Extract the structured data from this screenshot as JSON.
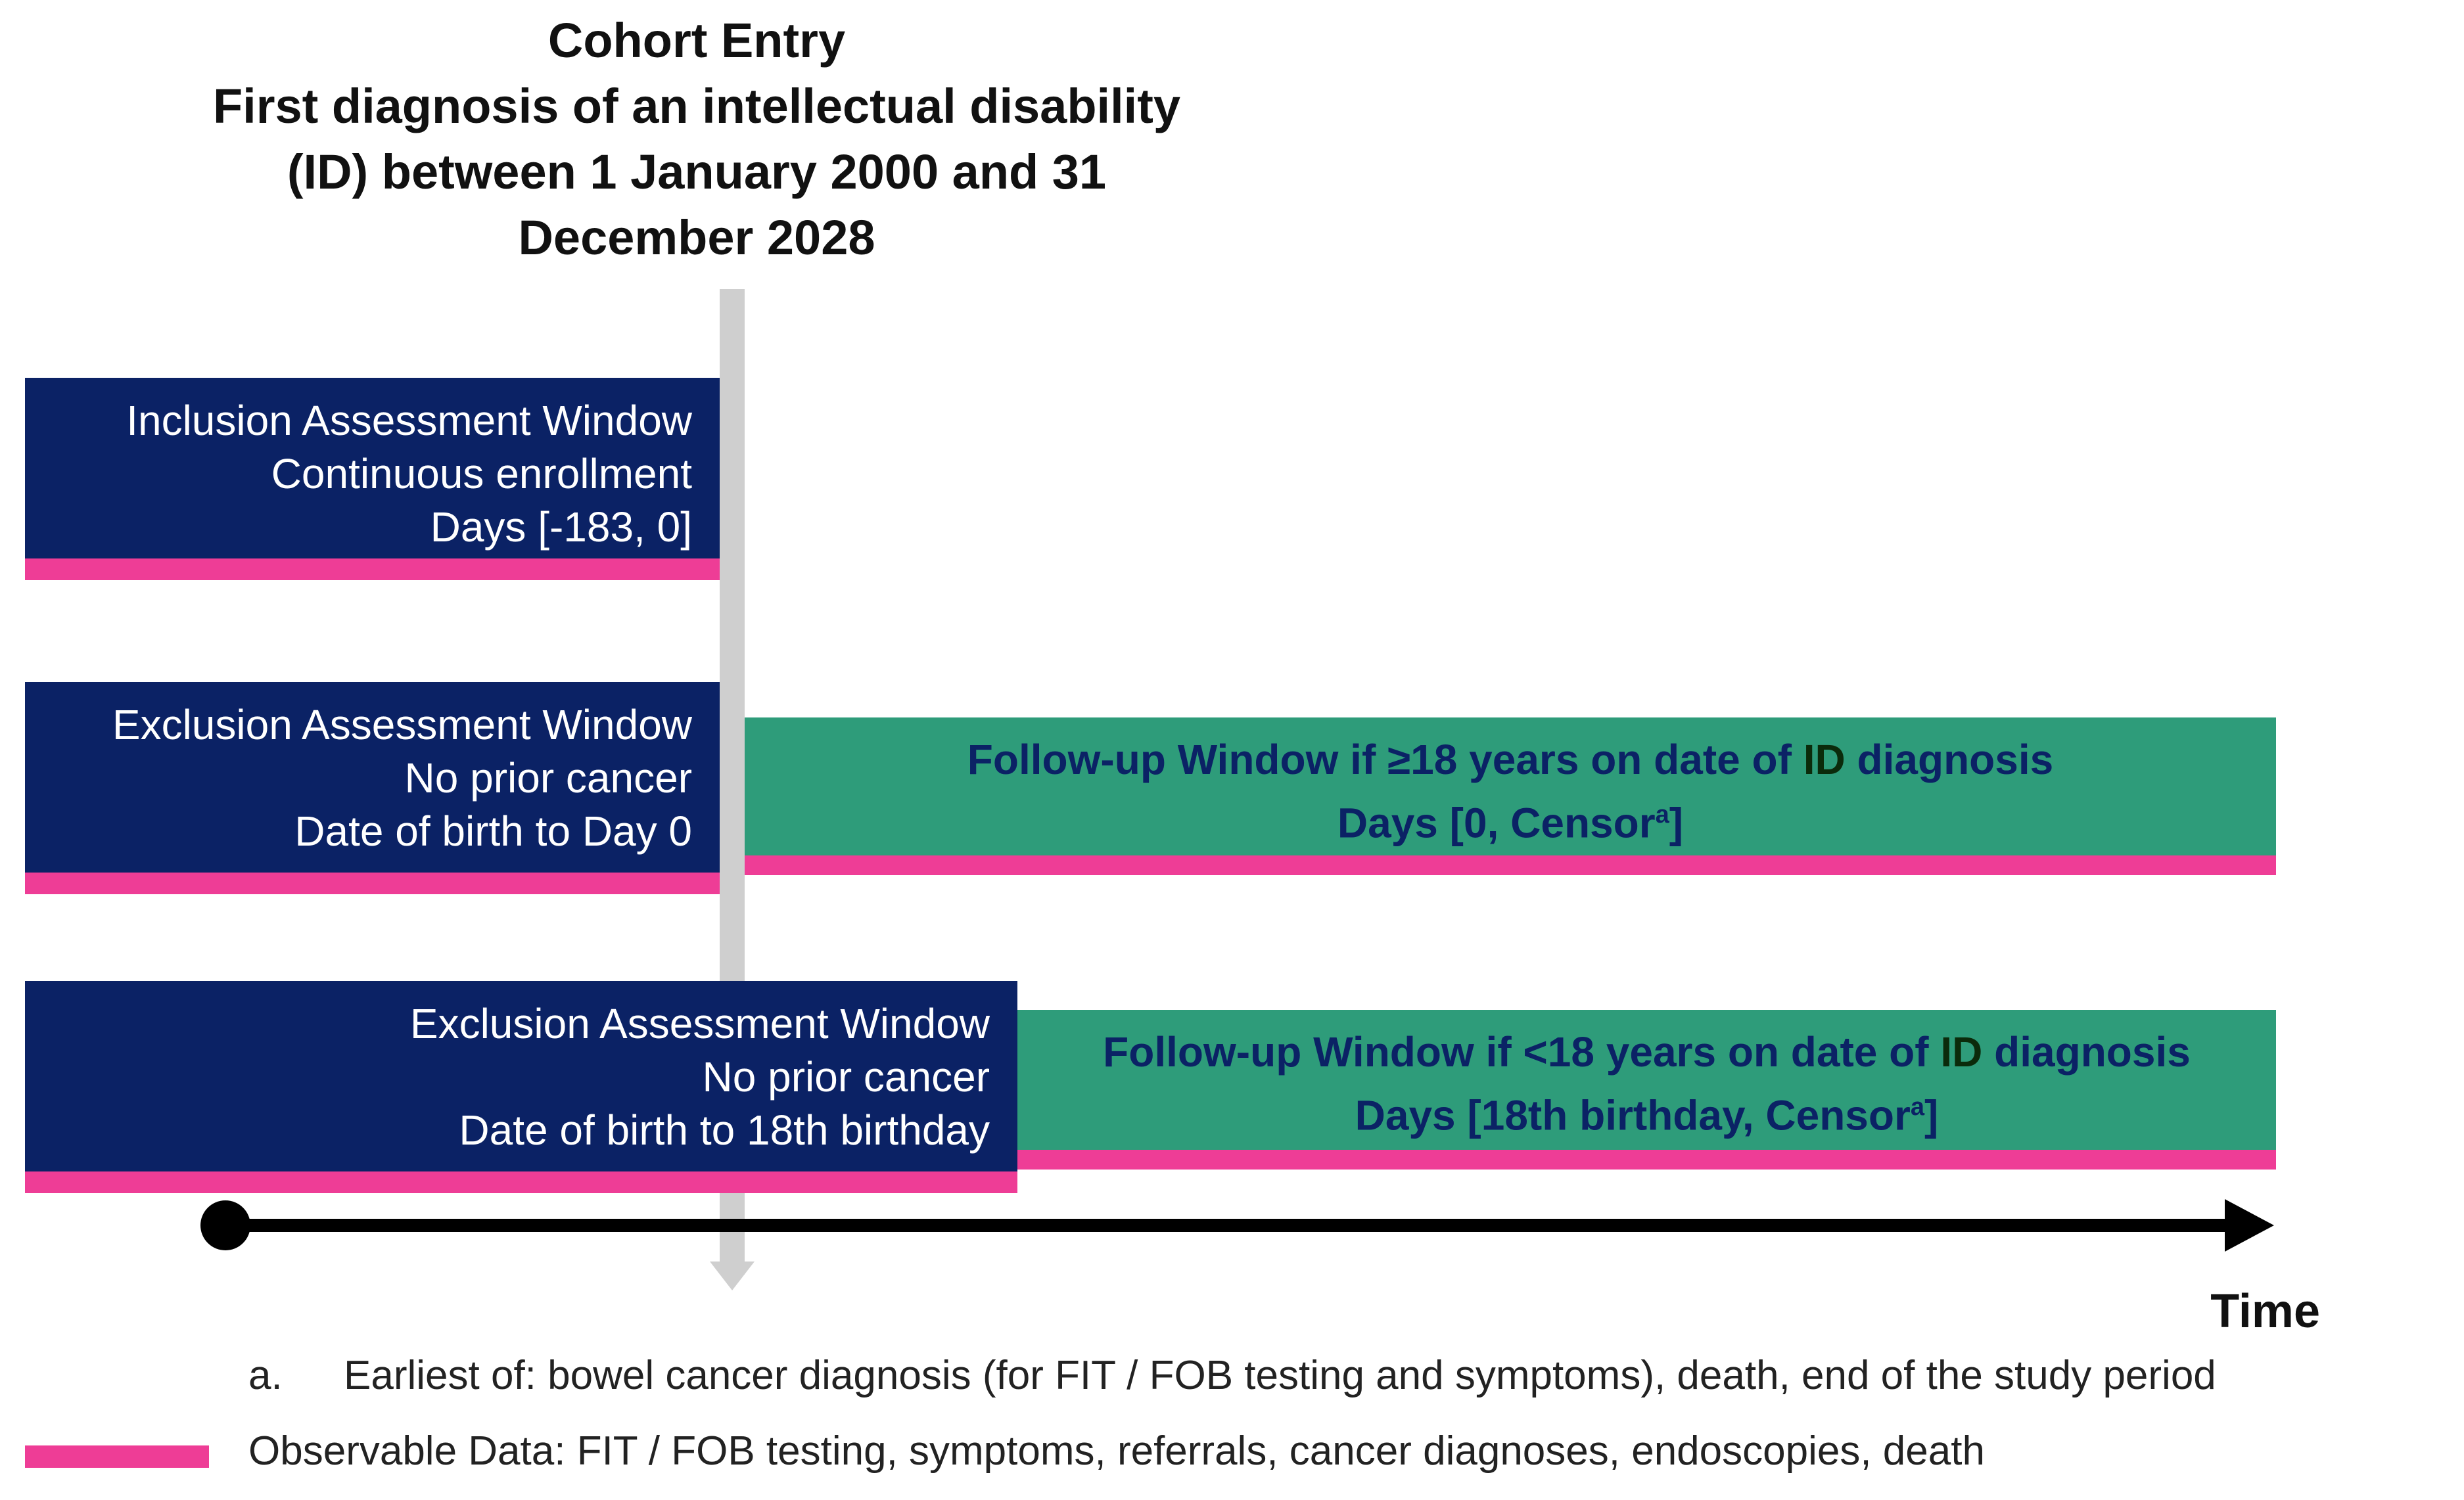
{
  "cohort_entry": {
    "lines": [
      "Cohort Entry",
      "First diagnosis of an intellectual disability",
      "(ID) between 1 January 2000 and 31",
      "December 2028"
    ]
  },
  "inclusion_window": {
    "lines": [
      "Inclusion Assessment Window",
      "Continuous enrollment",
      "Days [-183, 0]"
    ]
  },
  "exclusion_window_adult": {
    "lines": [
      "Exclusion Assessment Window",
      "No prior cancer",
      "Date of birth to Day 0"
    ]
  },
  "followup_window_adult": {
    "line1_before": "Follow-up Window if ≥18 years on date of ",
    "line1_id": "ID",
    "line1_after": " diagnosis",
    "line2_before": "Days [0, Censor",
    "line2_sup": "a",
    "line2_after": "]"
  },
  "exclusion_window_minor": {
    "lines": [
      "Exclusion Assessment Window",
      "No prior cancer",
      "Date of birth to 18th birthday"
    ]
  },
  "followup_window_minor": {
    "line1_before": "Follow-up Window if <18 years on date of ",
    "line1_id": "ID",
    "line1_after": " diagnosis",
    "line2_before": "Days [18th birthday, Censor",
    "line2_sup": "a",
    "line2_after": "]"
  },
  "time_axis": {
    "label": "Time"
  },
  "footnote": {
    "marker": "a.",
    "text": "Earliest of: bowel cancer diagnosis (for FIT / FOB testing and symptoms), death, end of the study period"
  },
  "legend": {
    "text": "Observable Data: FIT / FOB testing, symptoms, referrals, cancer diagnoses, endoscopies, death"
  },
  "colors": {
    "assessment_window": "#0b2265",
    "followup_window": "#2e9c7a",
    "observable_data": "#ee3d96",
    "entry_line": "#cfcfcf"
  }
}
